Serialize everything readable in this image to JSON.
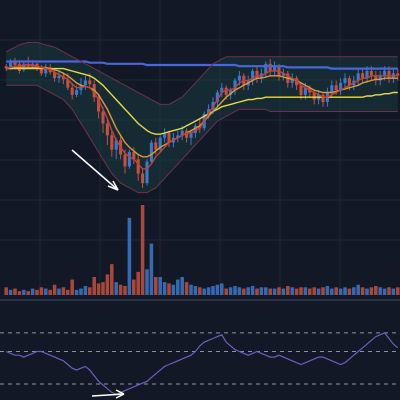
{
  "colors": {
    "background": "#121826",
    "grid": "#1e2637",
    "up": "#3f78c8",
    "down": "#c2513f",
    "bollinger": "#6e3248",
    "bollinger_fill": "#1a3a3f",
    "ma_long": "#4a66d8",
    "ma_mid": "#e8d84a",
    "ma_fast": "#d89a3a",
    "ma_red": "#c24040",
    "oscillator": "#6a5fbf",
    "divider": "#8a92a6",
    "arrow": "#ffffff"
  },
  "chart_data": [
    {
      "type": "candlestick",
      "panel": "price",
      "candles": [
        [
          68,
          66,
          70,
          64
        ],
        [
          67,
          72,
          74,
          65
        ],
        [
          72,
          69,
          75,
          68
        ],
        [
          70,
          64,
          73,
          62
        ],
        [
          65,
          70,
          72,
          63
        ],
        [
          70,
          68,
          76,
          67
        ],
        [
          68,
          70,
          73,
          66
        ],
        [
          70,
          66,
          72,
          64
        ],
        [
          66,
          62,
          69,
          60
        ],
        [
          62,
          67,
          70,
          59
        ],
        [
          67,
          63,
          70,
          61
        ],
        [
          63,
          58,
          66,
          55
        ],
        [
          58,
          60,
          64,
          54
        ],
        [
          60,
          57,
          63,
          53
        ],
        [
          57,
          50,
          62,
          48
        ],
        [
          50,
          44,
          54,
          40
        ],
        [
          44,
          48,
          52,
          42
        ],
        [
          48,
          52,
          58,
          44
        ],
        [
          52,
          56,
          60,
          48
        ],
        [
          56,
          53,
          62,
          51
        ],
        [
          53,
          42,
          56,
          38
        ],
        [
          42,
          30,
          44,
          24
        ],
        [
          30,
          20,
          34,
          12
        ],
        [
          20,
          10,
          24,
          2
        ],
        [
          10,
          -2,
          14,
          -8
        ],
        [
          -2,
          6,
          8,
          -10
        ],
        [
          6,
          -6,
          10,
          -10
        ],
        [
          -6,
          -16,
          -2,
          -22
        ],
        [
          -16,
          -4,
          -2,
          -18
        ],
        [
          -4,
          -10,
          0,
          -14
        ],
        [
          -10,
          -22,
          -6,
          -28
        ],
        [
          -22,
          -30,
          -18,
          -34
        ],
        [
          -30,
          -12,
          -10,
          -32
        ],
        [
          -12,
          4,
          6,
          -14
        ],
        [
          4,
          -2,
          8,
          -6
        ],
        [
          -2,
          8,
          10,
          -4
        ],
        [
          8,
          12,
          16,
          4
        ],
        [
          12,
          4,
          14,
          0
        ],
        [
          4,
          8,
          12,
          0
        ],
        [
          8,
          10,
          14,
          4
        ],
        [
          10,
          14,
          18,
          6
        ],
        [
          14,
          8,
          16,
          4
        ],
        [
          8,
          12,
          14,
          2
        ],
        [
          12,
          18,
          20,
          8
        ],
        [
          18,
          16,
          24,
          12
        ],
        [
          16,
          28,
          30,
          14
        ],
        [
          28,
          32,
          36,
          24
        ],
        [
          32,
          38,
          42,
          28
        ],
        [
          38,
          46,
          48,
          34
        ],
        [
          46,
          50,
          54,
          42
        ],
        [
          50,
          44,
          52,
          40
        ],
        [
          44,
          48,
          50,
          40
        ],
        [
          48,
          56,
          58,
          44
        ],
        [
          56,
          60,
          64,
          52
        ],
        [
          60,
          52,
          62,
          48
        ],
        [
          52,
          56,
          60,
          48
        ],
        [
          56,
          64,
          66,
          52
        ],
        [
          64,
          58,
          68,
          54
        ],
        [
          58,
          62,
          66,
          54
        ],
        [
          62,
          70,
          72,
          58
        ],
        [
          70,
          64,
          74,
          60
        ],
        [
          64,
          68,
          72,
          60
        ],
        [
          68,
          60,
          70,
          56
        ],
        [
          60,
          62,
          66,
          56
        ],
        [
          62,
          54,
          64,
          50
        ],
        [
          54,
          58,
          62,
          50
        ],
        [
          58,
          52,
          60,
          48
        ],
        [
          52,
          44,
          54,
          40
        ],
        [
          44,
          50,
          54,
          40
        ],
        [
          50,
          46,
          52,
          42
        ],
        [
          46,
          40,
          48,
          36
        ],
        [
          40,
          44,
          48,
          36
        ],
        [
          44,
          38,
          46,
          34
        ],
        [
          38,
          46,
          50,
          34
        ],
        [
          46,
          52,
          56,
          42
        ],
        [
          52,
          48,
          56,
          44
        ],
        [
          48,
          54,
          58,
          44
        ],
        [
          54,
          58,
          62,
          50
        ],
        [
          58,
          52,
          60,
          48
        ],
        [
          52,
          56,
          60,
          48
        ],
        [
          56,
          62,
          66,
          52
        ],
        [
          62,
          58,
          66,
          54
        ],
        [
          58,
          64,
          68,
          54
        ],
        [
          64,
          60,
          68,
          56
        ],
        [
          60,
          56,
          64,
          52
        ],
        [
          56,
          60,
          64,
          52
        ],
        [
          60,
          64,
          68,
          56
        ],
        [
          64,
          58,
          68,
          54
        ],
        [
          58,
          62,
          66,
          54
        ],
        [
          62,
          60,
          66,
          56
        ]
      ]
    },
    {
      "type": "line",
      "panel": "price",
      "series": [
        {
          "color_key": "ma_long",
          "values": [
            72,
            72,
            72,
            72,
            72,
            72,
            72,
            72,
            72,
            72,
            72,
            72,
            72,
            72,
            72,
            72,
            72,
            72,
            72,
            71,
            71,
            71,
            71,
            70,
            70,
            70,
            70,
            70,
            70,
            70,
            70,
            70,
            69,
            69,
            69,
            69,
            69,
            69,
            69,
            69,
            69,
            69,
            69,
            69,
            69,
            69,
            69,
            69,
            69,
            69,
            69,
            69,
            69,
            68,
            68,
            68,
            68,
            68,
            68,
            68,
            68,
            68,
            68,
            68,
            67,
            67,
            67,
            67,
            67,
            67,
            67,
            67,
            67,
            67,
            66,
            66,
            66,
            66,
            66,
            66,
            66,
            66,
            66,
            66,
            66,
            66,
            66,
            66,
            66,
            66
          ]
        },
        {
          "color_key": "ma_mid",
          "values": [
            66,
            66,
            66,
            66,
            66,
            66,
            66,
            66,
            66,
            66,
            66,
            66,
            66,
            66,
            65,
            64,
            63,
            62,
            61,
            60,
            58,
            55,
            52,
            48,
            44,
            40,
            36,
            32,
            28,
            24,
            20,
            17,
            14,
            12,
            11,
            11,
            12,
            13,
            14,
            15,
            16,
            18,
            20,
            22,
            24,
            26,
            28,
            30,
            32,
            34,
            35,
            36,
            37,
            38,
            39,
            40,
            40,
            41,
            41,
            42,
            42,
            42,
            42,
            42,
            42,
            42,
            42,
            42,
            42,
            42,
            42,
            42,
            42,
            42,
            42,
            42,
            42,
            42,
            42,
            42,
            42,
            42,
            43,
            43,
            44,
            44,
            45,
            45,
            46,
            46
          ]
        },
        {
          "color_key": "ma_fast",
          "values": [
            66,
            67,
            67,
            67,
            67,
            67,
            67,
            67,
            67,
            67,
            66,
            65,
            64,
            62,
            60,
            57,
            54,
            52,
            51,
            50,
            48,
            44,
            38,
            32,
            24,
            16,
            10,
            4,
            0,
            -3,
            -6,
            -8,
            -8,
            -6,
            -3,
            0,
            2,
            4,
            6,
            8,
            10,
            12,
            14,
            16,
            18,
            22,
            26,
            30,
            34,
            38,
            42,
            45,
            48,
            50,
            52,
            54,
            56,
            58,
            58,
            59,
            60,
            60,
            60,
            59,
            58,
            57,
            56,
            54,
            52,
            50,
            48,
            47,
            46,
            46,
            46,
            47,
            48,
            49,
            50,
            51,
            52,
            54,
            55,
            56,
            57,
            57,
            58,
            58,
            58,
            58
          ]
        },
        {
          "color_key": "ma_red",
          "values": [
            66,
            67,
            68,
            68,
            69,
            69,
            69,
            68,
            67,
            66,
            65,
            63,
            61,
            59,
            57,
            53,
            50,
            50,
            51,
            50,
            46,
            40,
            32,
            24,
            14,
            6,
            0,
            -5,
            -8,
            -10,
            -14,
            -18,
            -18,
            -14,
            -8,
            -4,
            0,
            4,
            6,
            8,
            10,
            12,
            12,
            14,
            16,
            22,
            28,
            34,
            40,
            46,
            48,
            48,
            50,
            54,
            56,
            56,
            58,
            60,
            60,
            62,
            64,
            64,
            64,
            62,
            60,
            58,
            56,
            52,
            50,
            48,
            46,
            44,
            42,
            42,
            44,
            46,
            48,
            50,
            52,
            54,
            56,
            58,
            58,
            60,
            60,
            60,
            60,
            60,
            60,
            60
          ]
        },
        {
          "color_key": "bollinger",
          "role": "upper",
          "values": [
            80,
            82,
            84,
            86,
            87,
            88,
            88,
            88,
            87,
            86,
            85,
            84,
            82,
            80,
            78,
            76,
            74,
            72,
            70,
            68,
            66,
            64,
            62,
            60,
            58,
            56,
            54,
            52,
            50,
            48,
            46,
            44,
            42,
            40,
            38,
            36,
            36,
            36,
            38,
            40,
            42,
            46,
            50,
            54,
            58,
            62,
            66,
            70,
            72,
            74,
            76,
            76,
            76,
            76,
            76,
            76,
            76,
            76,
            76,
            76,
            76,
            76,
            76,
            76,
            76,
            76,
            76,
            76,
            76,
            76,
            76,
            76,
            76,
            76,
            76,
            76,
            76,
            76,
            76,
            76,
            76,
            76,
            76,
            76,
            76,
            76,
            76,
            76,
            76,
            76
          ]
        },
        {
          "color_key": "bollinger",
          "role": "lower",
          "values": [
            52,
            52,
            52,
            52,
            52,
            52,
            52,
            52,
            50,
            48,
            46,
            44,
            42,
            40,
            36,
            32,
            26,
            20,
            14,
            8,
            2,
            -4,
            -10,
            -16,
            -22,
            -26,
            -30,
            -32,
            -34,
            -36,
            -38,
            -38,
            -38,
            -36,
            -34,
            -30,
            -26,
            -22,
            -18,
            -14,
            -10,
            -6,
            -2,
            2,
            6,
            10,
            14,
            18,
            22,
            24,
            26,
            28,
            30,
            32,
            32,
            32,
            32,
            32,
            32,
            32,
            30,
            30,
            30,
            30,
            30,
            30,
            30,
            30,
            30,
            30,
            30,
            30,
            30,
            30,
            30,
            30,
            30,
            30,
            30,
            30,
            30,
            30,
            30,
            30,
            30,
            30,
            30,
            30,
            30,
            30
          ]
        }
      ]
    },
    {
      "type": "bar",
      "panel": "volume",
      "values": [
        6,
        4,
        5,
        3,
        4,
        3,
        5,
        4,
        6,
        5,
        4,
        8,
        5,
        6,
        4,
        12,
        4,
        5,
        7,
        6,
        14,
        9,
        10,
        16,
        24,
        10,
        8,
        7,
        60,
        12,
        18,
        70,
        20,
        40,
        14,
        14,
        10,
        9,
        8,
        12,
        14,
        10,
        8,
        7,
        6,
        5,
        6,
        7,
        8,
        9,
        5,
        6,
        7,
        6,
        5,
        6,
        7,
        5,
        6,
        6,
        5,
        5,
        6,
        5,
        7,
        6,
        5,
        6,
        6,
        5,
        6,
        5,
        6,
        7,
        5,
        6,
        5,
        6,
        5,
        6,
        8,
        6,
        5,
        6,
        7,
        6,
        5,
        6,
        5,
        6
      ]
    },
    {
      "type": "line",
      "panel": "oscillator",
      "values": [
        50,
        48,
        46,
        46,
        44,
        46,
        48,
        50,
        50,
        48,
        46,
        44,
        42,
        40,
        36,
        32,
        30,
        32,
        34,
        30,
        24,
        18,
        14,
        10,
        6,
        4,
        6,
        8,
        10,
        12,
        14,
        16,
        18,
        22,
        26,
        30,
        34,
        36,
        38,
        40,
        42,
        44,
        46,
        50,
        56,
        60,
        62,
        64,
        66,
        68,
        60,
        56,
        52,
        50,
        48,
        46,
        48,
        50,
        48,
        46,
        44,
        44,
        46,
        44,
        42,
        40,
        38,
        36,
        38,
        40,
        42,
        44,
        44,
        42,
        40,
        38,
        36,
        38,
        42,
        46,
        50,
        54,
        58,
        62,
        66,
        68,
        70,
        64,
        58,
        54
      ]
    }
  ]
}
